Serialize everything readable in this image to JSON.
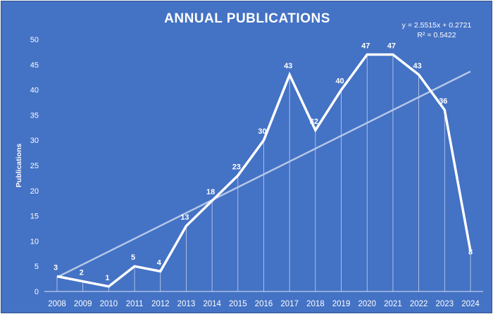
{
  "chart_data": {
    "type": "line",
    "title": "ANNUAL PUBLICATIONS",
    "ylabel": "Publications",
    "xlabel": "",
    "categories": [
      "2008",
      "2009",
      "2010",
      "2011",
      "2012",
      "2013",
      "2014",
      "2015",
      "2016",
      "2017",
      "2018",
      "2019",
      "2020",
      "2021",
      "2022",
      "2023",
      "2024"
    ],
    "values": [
      3,
      2,
      1,
      5,
      4,
      13,
      18,
      23,
      30,
      43,
      32,
      40,
      47,
      47,
      43,
      36,
      8
    ],
    "data_labels": [
      "3",
      "2",
      "1",
      "5",
      "4",
      "13",
      "18",
      "23",
      "30",
      "43",
      "32",
      "40",
      "47",
      "47",
      "43",
      "36",
      "8"
    ],
    "ylim": [
      0,
      50
    ],
    "yticks": [
      0,
      5,
      10,
      15,
      20,
      25,
      30,
      35,
      40,
      45,
      50
    ],
    "ytick_labels": [
      "0",
      "5",
      "10",
      "15",
      "20",
      "25",
      "30",
      "35",
      "40",
      "45",
      "50"
    ],
    "trendline": {
      "type": "linear",
      "slope": 2.5515,
      "intercept": 0.2721,
      "equation": "y = 2.5515x + 0.2721",
      "r_squared": "R² = 0.5422"
    },
    "background_color": "#4472c4",
    "line_color": "#ffffff",
    "trendline_color": "#b4c7e7",
    "grid": false,
    "drop_lines": true,
    "legend": "none"
  }
}
